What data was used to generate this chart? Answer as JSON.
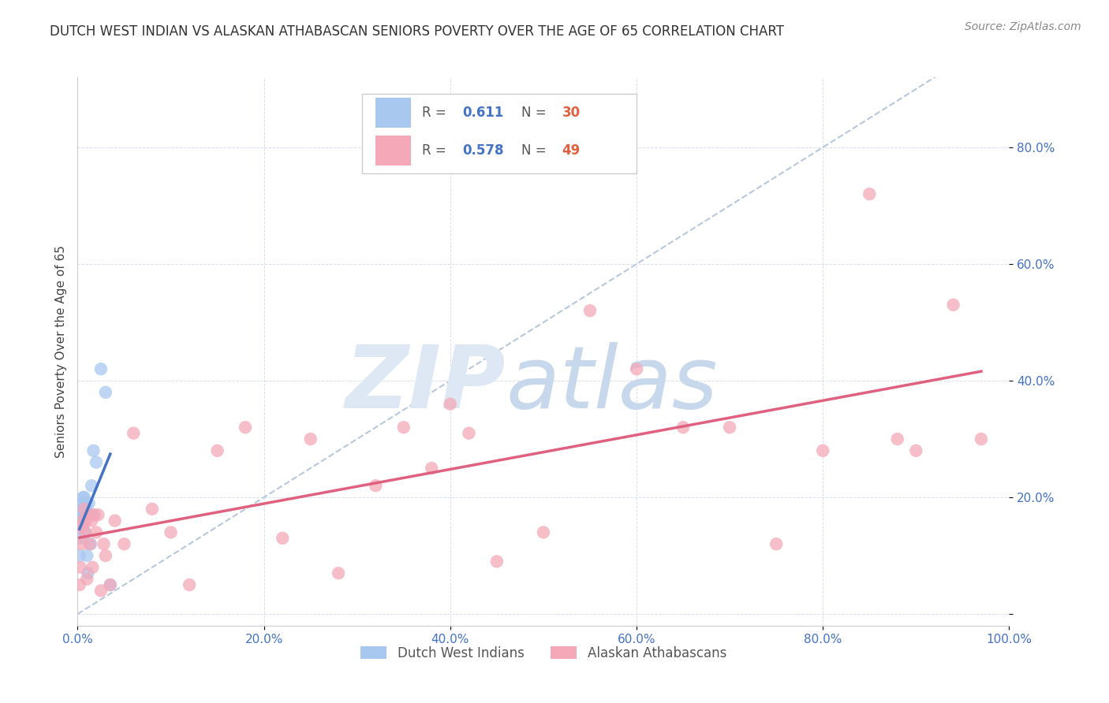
{
  "title": "DUTCH WEST INDIAN VS ALASKAN ATHABASCAN SENIORS POVERTY OVER THE AGE OF 65 CORRELATION CHART",
  "source": "Source: ZipAtlas.com",
  "ylabel": "Seniors Poverty Over the Age of 65",
  "xlim": [
    0,
    1.0
  ],
  "ylim": [
    -0.02,
    0.92
  ],
  "yticks": [
    0.0,
    0.2,
    0.4,
    0.6,
    0.8
  ],
  "xticks": [
    0.0,
    0.2,
    0.4,
    0.6,
    0.8,
    1.0
  ],
  "blue_R": "0.611",
  "blue_N": "30",
  "pink_R": "0.578",
  "pink_N": "49",
  "blue_label": "Dutch West Indians",
  "pink_label": "Alaskan Athabascans",
  "blue_color": "#A8C8F0",
  "pink_color": "#F4A8B8",
  "blue_line_color": "#4472C4",
  "pink_line_color": "#E06080",
  "ref_line_color": "#B8C8DC",
  "background_color": "#FFFFFF",
  "blue_x": [
    0.002,
    0.003,
    0.004,
    0.004,
    0.005,
    0.005,
    0.005,
    0.006,
    0.006,
    0.006,
    0.007,
    0.007,
    0.007,
    0.008,
    0.008,
    0.009,
    0.009,
    0.01,
    0.01,
    0.011,
    0.012,
    0.013,
    0.014,
    0.015,
    0.016,
    0.017,
    0.02,
    0.025,
    0.03,
    0.035
  ],
  "blue_y": [
    0.1,
    0.13,
    0.16,
    0.18,
    0.15,
    0.17,
    0.19,
    0.15,
    0.17,
    0.2,
    0.16,
    0.18,
    0.2,
    0.14,
    0.17,
    0.18,
    0.19,
    0.1,
    0.17,
    0.07,
    0.19,
    0.17,
    0.12,
    0.22,
    0.17,
    0.28,
    0.26,
    0.42,
    0.38,
    0.05
  ],
  "pink_x": [
    0.002,
    0.003,
    0.004,
    0.005,
    0.006,
    0.007,
    0.008,
    0.009,
    0.01,
    0.012,
    0.013,
    0.015,
    0.016,
    0.018,
    0.02,
    0.022,
    0.025,
    0.028,
    0.03,
    0.035,
    0.04,
    0.05,
    0.06,
    0.08,
    0.1,
    0.12,
    0.15,
    0.18,
    0.22,
    0.25,
    0.28,
    0.32,
    0.35,
    0.38,
    0.4,
    0.42,
    0.45,
    0.5,
    0.55,
    0.6,
    0.65,
    0.7,
    0.75,
    0.8,
    0.85,
    0.88,
    0.9,
    0.94,
    0.97
  ],
  "pink_y": [
    0.05,
    0.08,
    0.12,
    0.15,
    0.16,
    0.18,
    0.14,
    0.16,
    0.06,
    0.17,
    0.12,
    0.16,
    0.08,
    0.17,
    0.14,
    0.17,
    0.04,
    0.12,
    0.1,
    0.05,
    0.16,
    0.12,
    0.31,
    0.18,
    0.14,
    0.05,
    0.28,
    0.32,
    0.13,
    0.3,
    0.07,
    0.22,
    0.32,
    0.25,
    0.36,
    0.31,
    0.09,
    0.14,
    0.52,
    0.42,
    0.32,
    0.32,
    0.12,
    0.28,
    0.72,
    0.3,
    0.28,
    0.53,
    0.3
  ],
  "title_fontsize": 12,
  "source_fontsize": 10,
  "axis_label_fontsize": 11,
  "tick_fontsize": 11,
  "legend_fontsize": 12,
  "watermark_zip_color": "#DDE8F4",
  "watermark_atlas_color": "#C8D8EC"
}
